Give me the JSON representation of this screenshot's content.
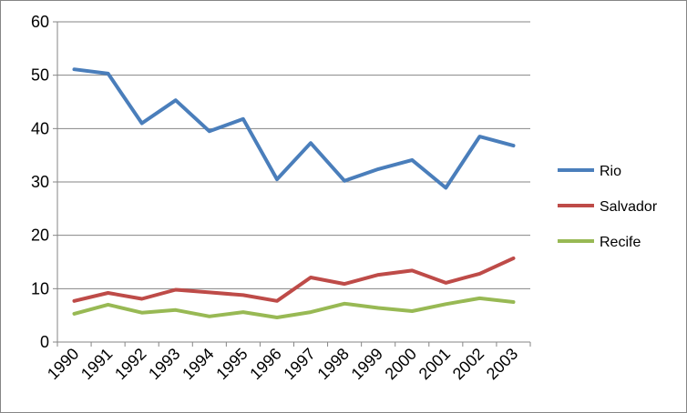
{
  "chart_data": {
    "type": "line",
    "title": "",
    "xlabel": "",
    "ylabel": "",
    "x": [
      "1990",
      "1991",
      "1992",
      "1993",
      "1994",
      "1995",
      "1996",
      "1997",
      "1998",
      "1999",
      "2000",
      "2001",
      "2002",
      "2003"
    ],
    "ylim": [
      0,
      60
    ],
    "yticks": [
      0,
      10,
      20,
      30,
      40,
      50,
      60
    ],
    "grid": "horizontal",
    "legend_position": "right",
    "series": [
      {
        "name": "Rio",
        "color": "#4a7ebb",
        "values": [
          51.1,
          50.3,
          41.0,
          45.3,
          39.5,
          41.8,
          30.5,
          37.3,
          30.2,
          32.4,
          34.1,
          28.9,
          38.5,
          36.8
        ]
      },
      {
        "name": "Salvador",
        "color": "#be4b48",
        "values": [
          7.7,
          9.2,
          8.1,
          9.8,
          9.3,
          8.8,
          7.7,
          12.1,
          10.9,
          12.6,
          13.4,
          11.1,
          12.8,
          15.7
        ]
      },
      {
        "name": "Recife",
        "color": "#98b954",
        "values": [
          5.3,
          7.0,
          5.5,
          6.0,
          4.8,
          5.6,
          4.6,
          5.6,
          7.2,
          6.4,
          5.8,
          7.1,
          8.2,
          7.5
        ]
      }
    ]
  }
}
